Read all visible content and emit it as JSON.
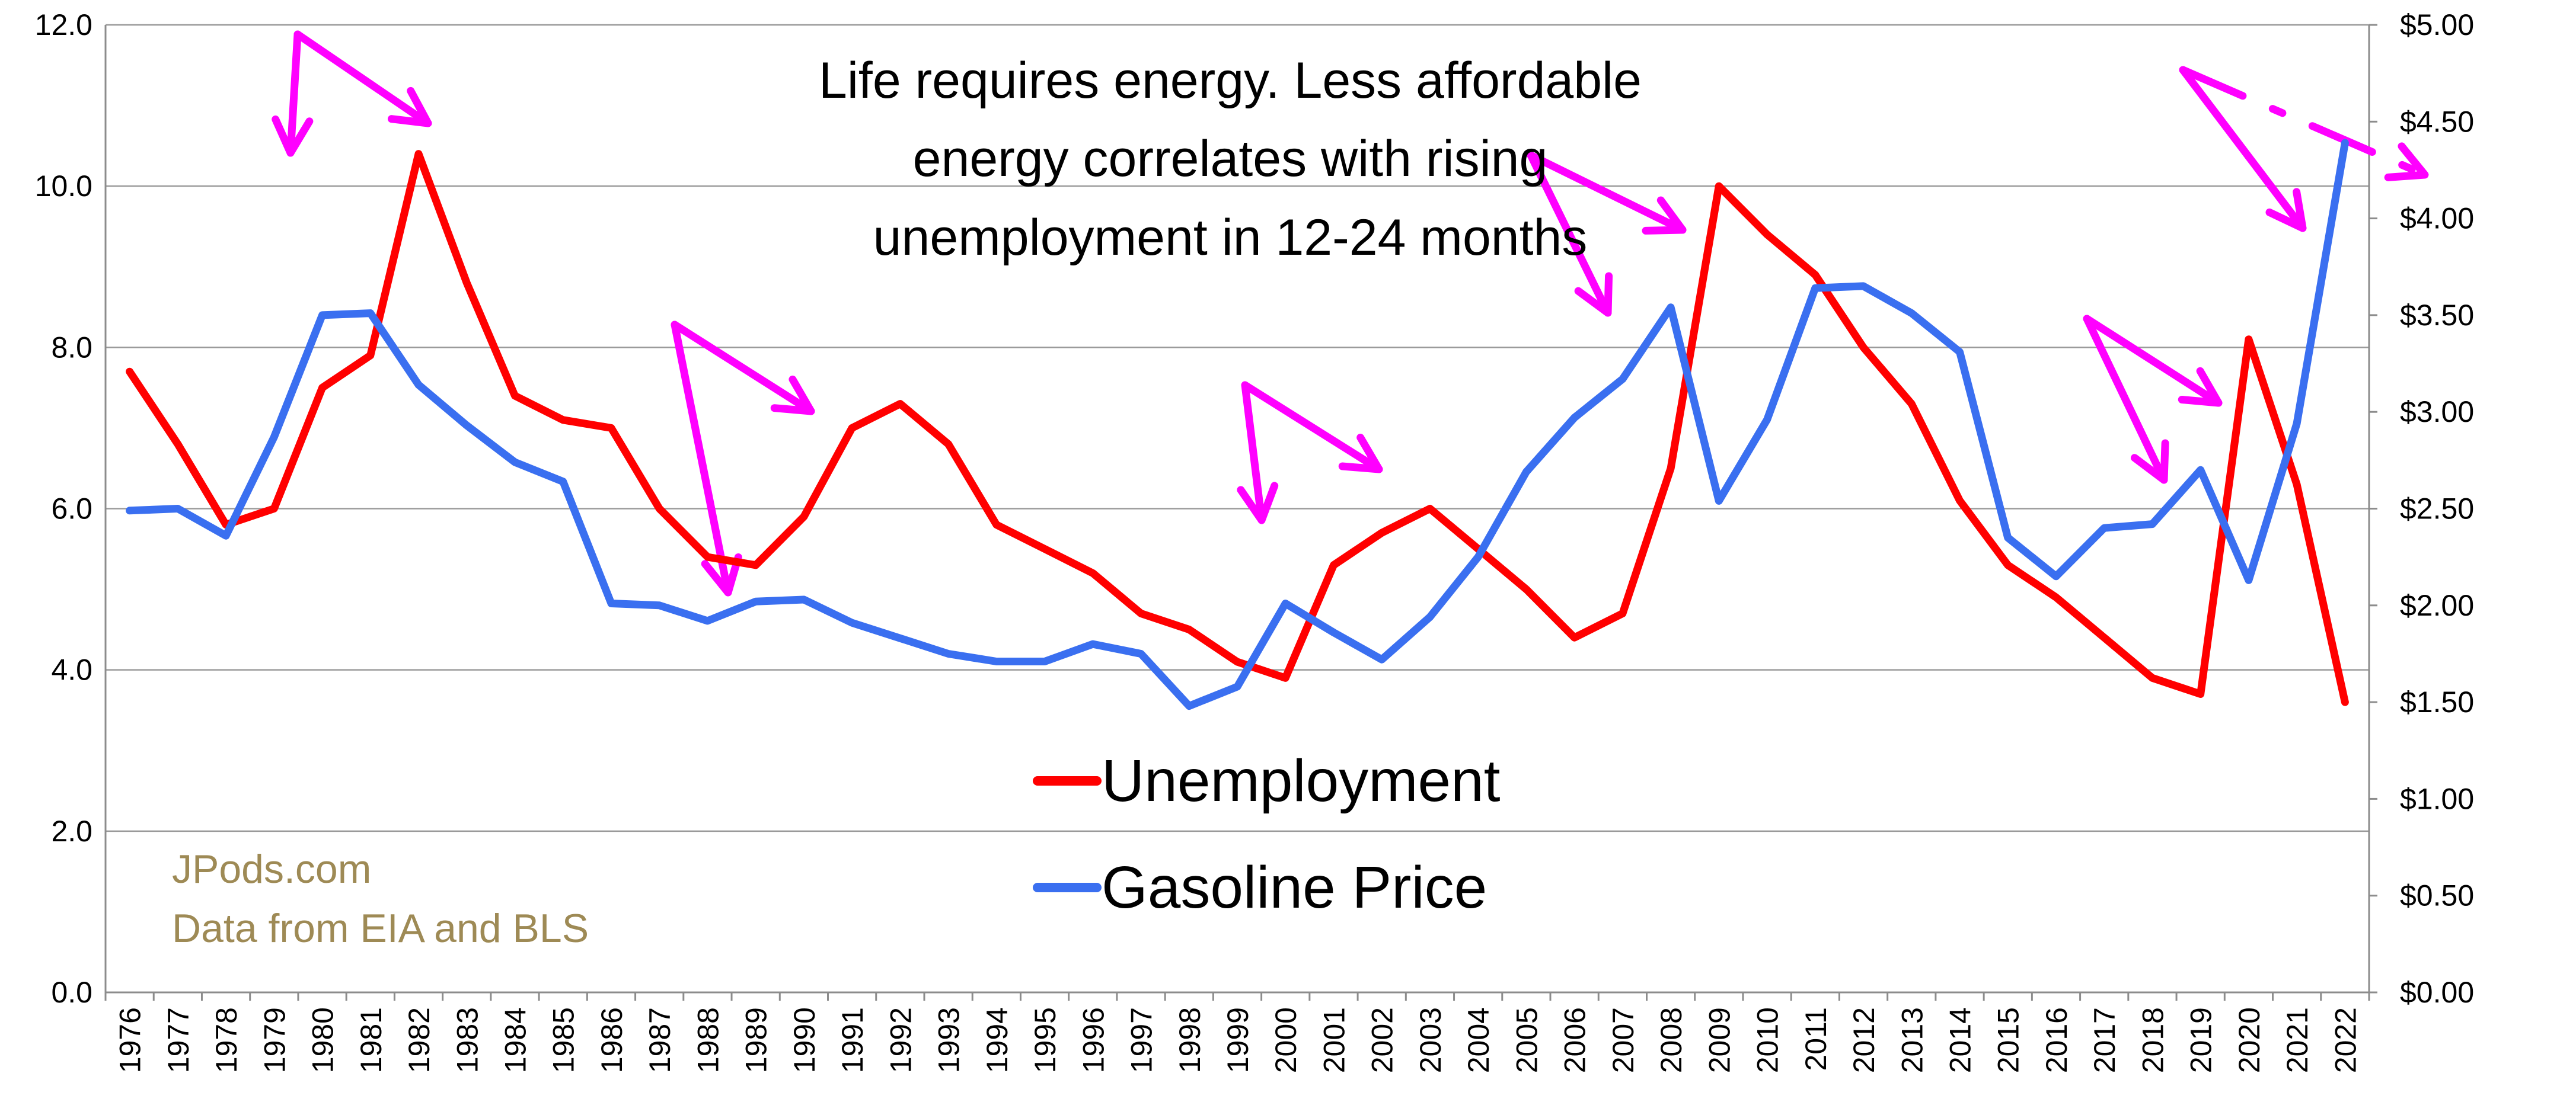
{
  "chart_data": {
    "type": "line",
    "title": "",
    "annotation_lines": [
      "Life requires energy. Less affordable",
      "energy correlates with rising",
      "unemployment in 12-24 months"
    ],
    "credit_lines": [
      "JPods.com",
      "Data from EIA and BLS"
    ],
    "categories": [
      "1976",
      "1977",
      "1978",
      "1979",
      "1980",
      "1981",
      "1982",
      "1983",
      "1984",
      "1985",
      "1986",
      "1987",
      "1988",
      "1989",
      "1990",
      "1991",
      "1992",
      "1993",
      "1994",
      "1995",
      "1996",
      "1997",
      "1998",
      "1999",
      "2000",
      "2001",
      "2002",
      "2003",
      "2004",
      "2005",
      "2006",
      "2007",
      "2008",
      "2009",
      "2010",
      "2011",
      "2012",
      "2013",
      "2014",
      "2015",
      "2016",
      "2017",
      "2018",
      "2019",
      "2020",
      "2021",
      "2022"
    ],
    "series": [
      {
        "name": "Unemployment",
        "axis": "left",
        "color": "#ff0000",
        "values": [
          7.7,
          6.8,
          5.8,
          6.0,
          7.5,
          7.9,
          10.4,
          8.8,
          7.4,
          7.1,
          7.0,
          6.0,
          5.4,
          5.3,
          5.9,
          7.0,
          7.3,
          6.8,
          5.8,
          5.5,
          5.2,
          4.7,
          4.5,
          4.1,
          3.9,
          5.3,
          5.7,
          6.0,
          5.5,
          5.0,
          4.4,
          4.7,
          6.5,
          10.0,
          9.4,
          8.9,
          8.0,
          7.3,
          6.1,
          5.3,
          4.9,
          4.4,
          3.9,
          3.7,
          8.1,
          6.3,
          3.6
        ]
      },
      {
        "name": "Gasoline Price",
        "axis": "right",
        "color": "#3a6ff0",
        "values": [
          2.49,
          2.5,
          2.36,
          2.87,
          3.5,
          3.51,
          3.14,
          2.93,
          2.74,
          2.64,
          2.01,
          2.0,
          1.92,
          2.02,
          2.03,
          1.91,
          1.83,
          1.75,
          1.71,
          1.71,
          1.8,
          1.75,
          1.48,
          1.58,
          2.01,
          1.86,
          1.72,
          1.94,
          2.25,
          2.69,
          2.97,
          3.17,
          3.54,
          2.54,
          2.96,
          3.64,
          3.65,
          3.51,
          3.31,
          2.35,
          2.15,
          2.4,
          2.42,
          2.7,
          2.13,
          2.94,
          4.39
        ]
      }
    ],
    "y_left": {
      "min": 0,
      "max": 12,
      "ticks": [
        "0.0",
        "2.0",
        "4.0",
        "6.0",
        "8.0",
        "10.0",
        "12.0"
      ]
    },
    "y_right": {
      "min": 0,
      "max": 5,
      "ticks": [
        "$0.00",
        "$0.50",
        "$1.00",
        "$1.50",
        "$2.00",
        "$2.50",
        "$3.00",
        "$3.50",
        "$4.00",
        "$4.50",
        "$5.00"
      ]
    },
    "arrow_color": "#ff00ff",
    "grid": true,
    "legend_position": "bottom-center"
  }
}
